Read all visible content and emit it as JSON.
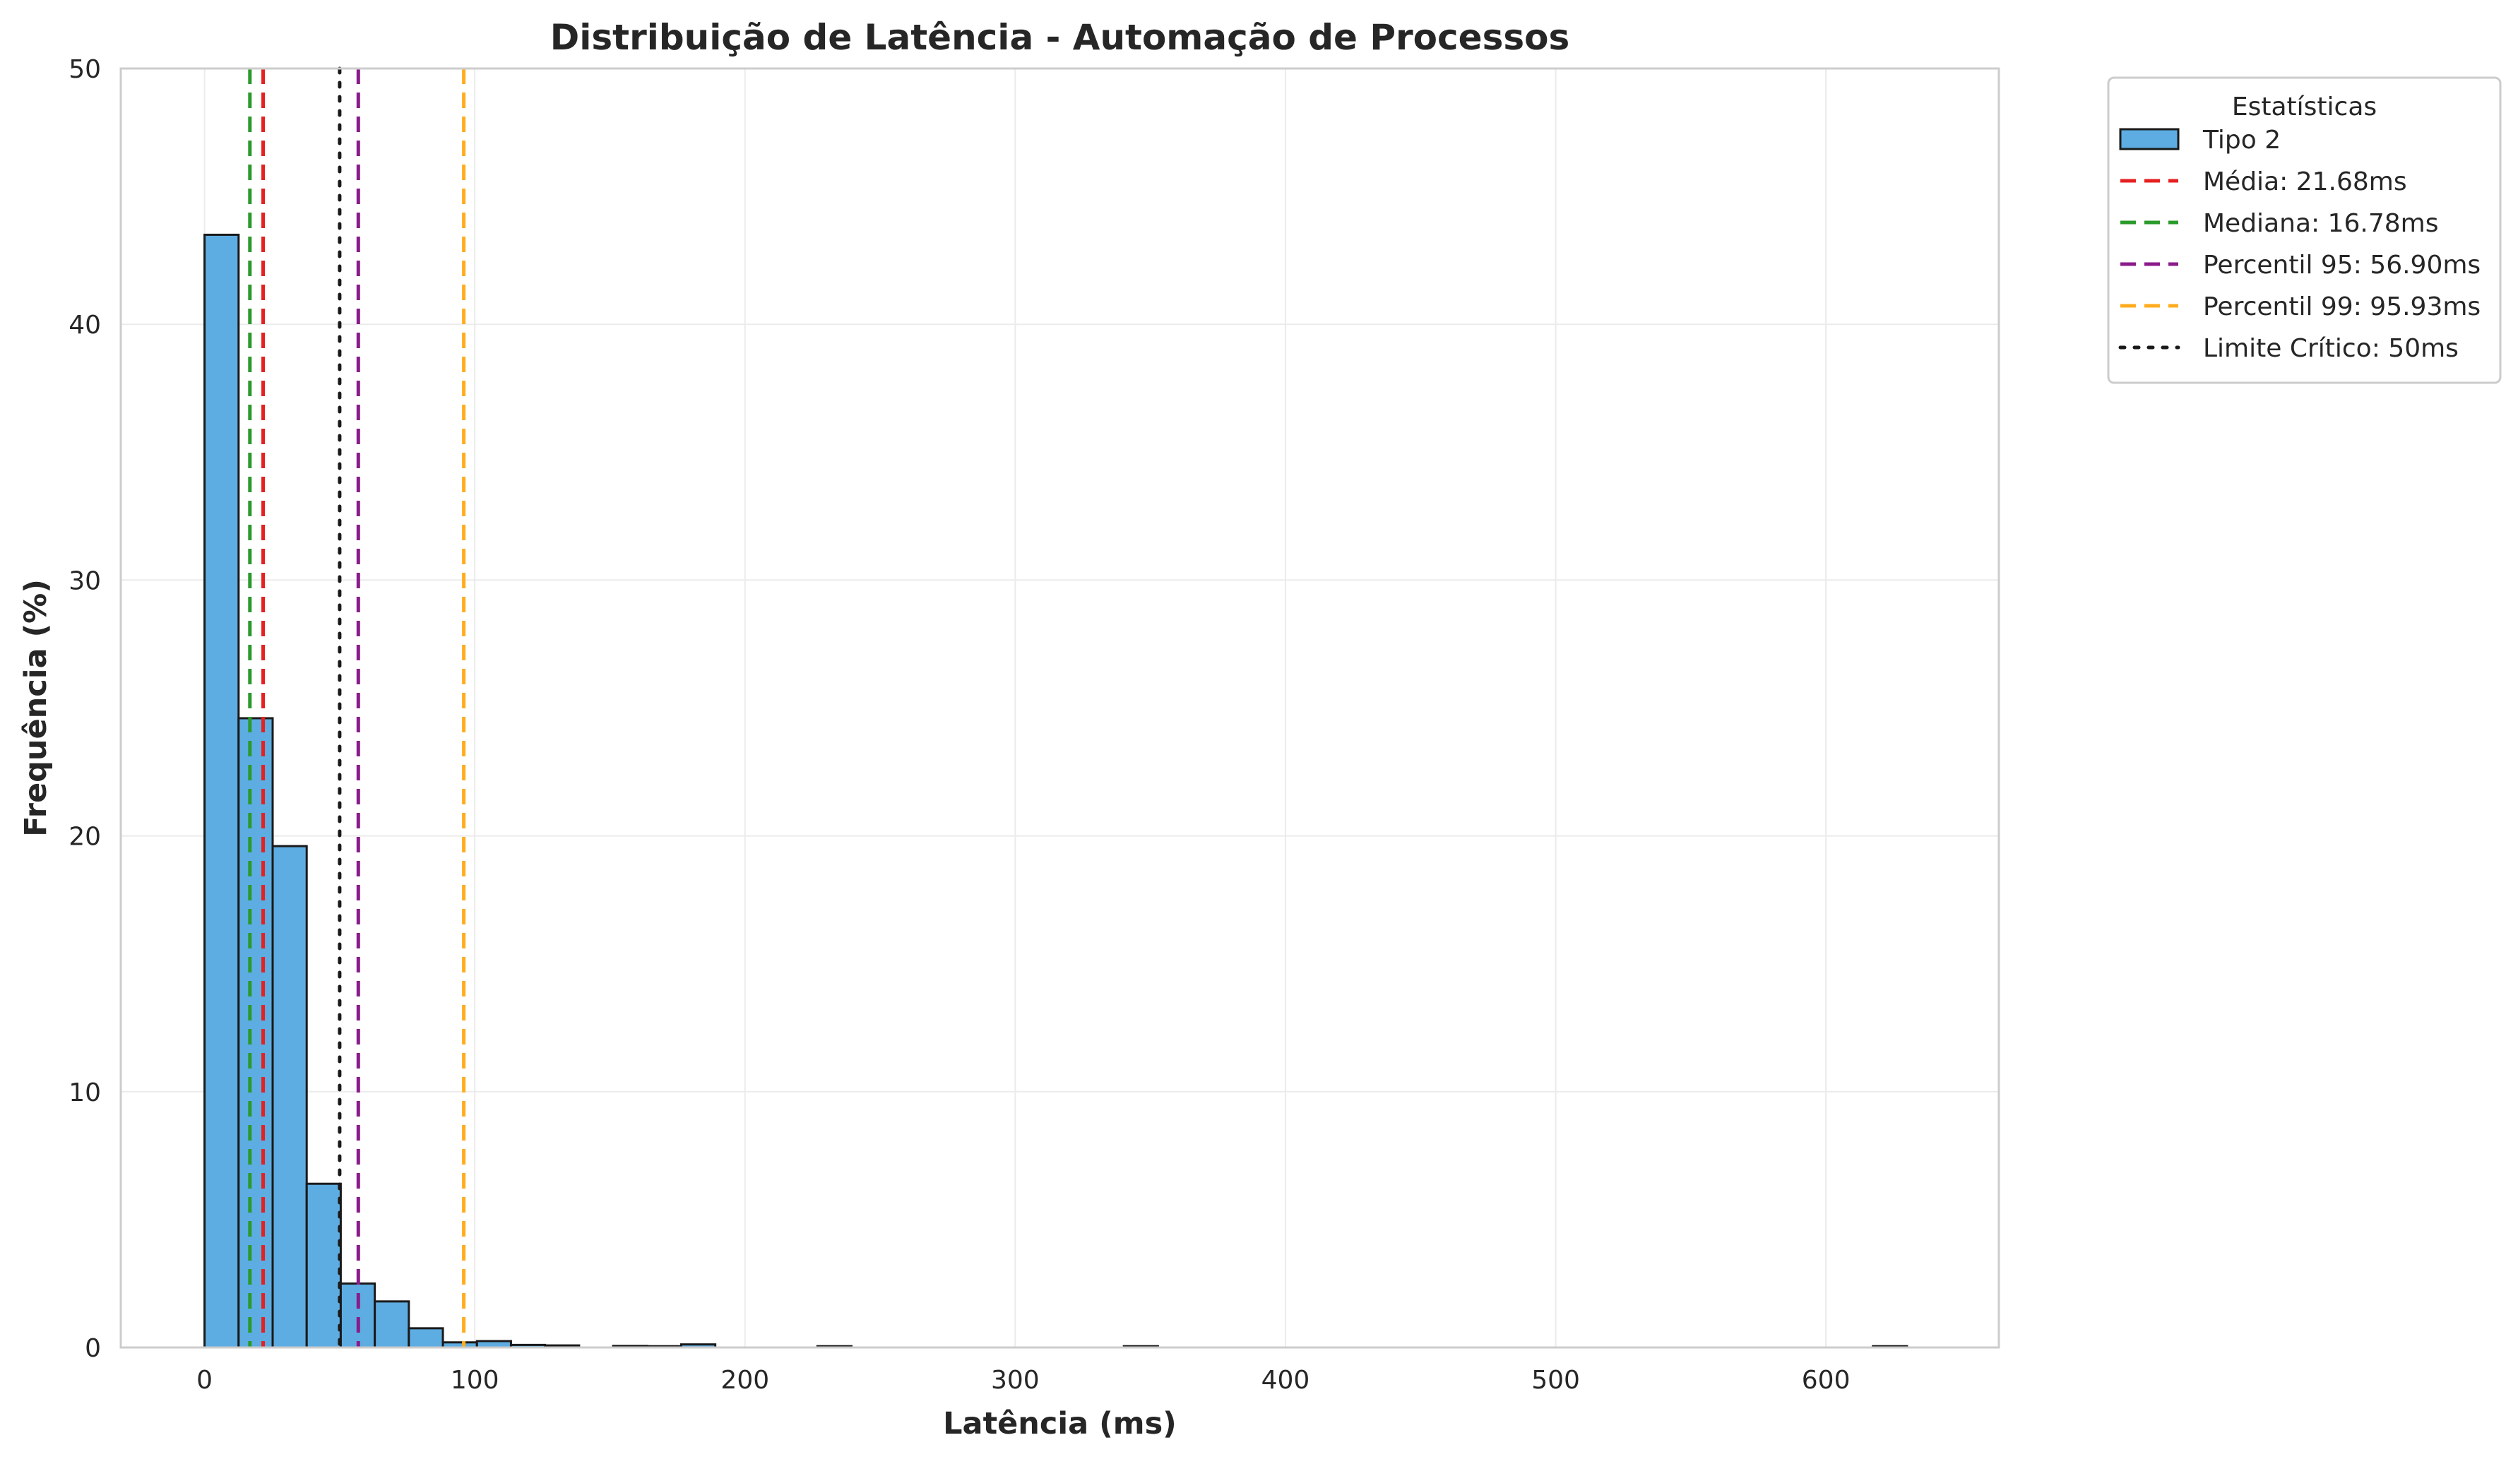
{
  "chart_data": {
    "type": "bar",
    "title": "Distribuição de Latência - Automação de Processos",
    "xlabel": "Latência (ms)",
    "ylabel": "Frequência (%)",
    "xlim": [
      -31,
      664
    ],
    "ylim": [
      0,
      50
    ],
    "x_ticks": [
      0,
      100,
      200,
      300,
      400,
      500,
      600
    ],
    "y_ticks": [
      0,
      10,
      20,
      30,
      40,
      50
    ],
    "grid": true,
    "legend": {
      "title": "Estatísticas",
      "placement": "outside-top-right"
    },
    "series": [
      {
        "name": "Tipo 2",
        "color": "#5dade2",
        "edge_color": "#1a1a1a",
        "bin_width": 12.6,
        "bins": [
          {
            "x0": 0.0,
            "value": 43.5
          },
          {
            "x0": 12.6,
            "value": 24.6
          },
          {
            "x0": 25.2,
            "value": 19.6
          },
          {
            "x0": 37.8,
            "value": 6.4
          },
          {
            "x0": 50.4,
            "value": 2.5
          },
          {
            "x0": 63.0,
            "value": 1.8
          },
          {
            "x0": 75.6,
            "value": 0.75
          },
          {
            "x0": 88.2,
            "value": 0.2
          },
          {
            "x0": 100.8,
            "value": 0.25
          },
          {
            "x0": 113.4,
            "value": 0.1
          },
          {
            "x0": 126.0,
            "value": 0.08
          },
          {
            "x0": 151.2,
            "value": 0.06
          },
          {
            "x0": 163.8,
            "value": 0.05
          },
          {
            "x0": 176.4,
            "value": 0.12
          },
          {
            "x0": 226.8,
            "value": 0.05
          },
          {
            "x0": 340.2,
            "value": 0.05
          },
          {
            "x0": 617.4,
            "value": 0.05
          }
        ]
      }
    ],
    "reference_lines": [
      {
        "name": "Média: 21.68ms",
        "x": 21.68,
        "color": "#e62020",
        "style": "dashed"
      },
      {
        "name": "Mediana: 16.78ms",
        "x": 16.78,
        "color": "#2a9a2a",
        "style": "dashed"
      },
      {
        "name": "Percentil 95: 56.90ms",
        "x": 56.9,
        "color": "#8b1a8b",
        "style": "dashed"
      },
      {
        "name": "Percentil 99: 95.93ms",
        "x": 95.93,
        "color": "#ffad1f",
        "style": "dashed"
      },
      {
        "name": "Limite Crítico: 50ms",
        "x": 50,
        "color": "#1a1a1a",
        "style": "dotted"
      }
    ]
  }
}
